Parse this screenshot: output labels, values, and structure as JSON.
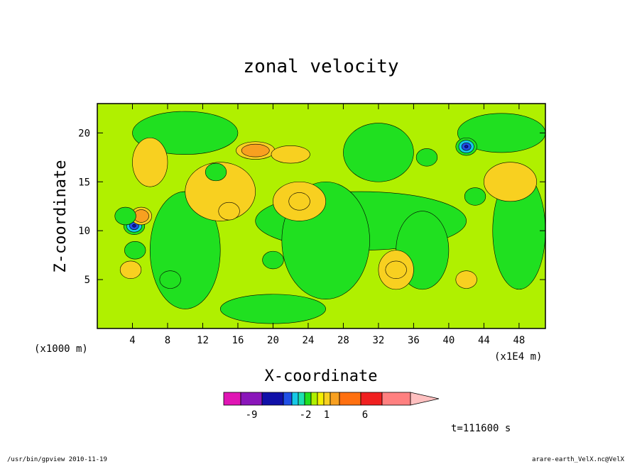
{
  "chart_data": {
    "type": "heatmap",
    "title": "zonal velocity",
    "xlabel": "X-coordinate",
    "ylabel": "Z-coordinate",
    "x_units": "(x1E4 m)",
    "y_units": "(x1000 m)",
    "xlim": [
      0,
      51
    ],
    "ylim": [
      0,
      23
    ],
    "x_ticks": [
      4,
      8,
      12,
      16,
      20,
      24,
      28,
      32,
      36,
      40,
      44,
      48
    ],
    "y_ticks": [
      5,
      10,
      15,
      20
    ],
    "grid": false,
    "colorbar": {
      "colors": [
        "#e015b4",
        "#8a16ba",
        "#1010a8",
        "#2050e6",
        "#17c9e6",
        "#1de0b0",
        "#20e020",
        "#b0f000",
        "#f5f000",
        "#f8d020",
        "#f8a020",
        "#ff7010",
        "#f02020",
        "#ff8080",
        "#ffc0c0"
      ],
      "tick_labels": [
        "-9",
        "-2",
        "1",
        "6"
      ],
      "extend": "max"
    },
    "features": [
      {
        "x": 4.2,
        "z": 10.5,
        "sign": "neg",
        "level": -9
      },
      {
        "x": 5.0,
        "z": 11.5,
        "sign": "pos",
        "level": 6
      },
      {
        "x": 3.2,
        "z": 11.5,
        "sign": "neg",
        "level": -2
      },
      {
        "x": 4.3,
        "z": 8.0,
        "sign": "neg",
        "level": -2
      },
      {
        "x": 3.8,
        "z": 6.0,
        "sign": "pos",
        "level": 3
      },
      {
        "x": 18.0,
        "z": 18.2,
        "sign": "pos",
        "level": 6
      },
      {
        "x": 22.0,
        "z": 17.8,
        "sign": "pos",
        "level": 3
      },
      {
        "x": 13.5,
        "z": 16.0,
        "sign": "neg",
        "level": -2
      },
      {
        "x": 8.3,
        "z": 5.0,
        "sign": "neg",
        "level": -2
      },
      {
        "x": 42.0,
        "z": 18.6,
        "sign": "neg",
        "level": -9
      },
      {
        "x": 37.5,
        "z": 17.5,
        "sign": "neg",
        "level": -2
      },
      {
        "x": 43.0,
        "z": 13.5,
        "sign": "neg",
        "level": -1
      },
      {
        "x": 42.0,
        "z": 5.0,
        "sign": "pos",
        "level": 3
      },
      {
        "x": 15.0,
        "z": 12.0,
        "sign": "pos",
        "level": 3
      },
      {
        "x": 23.0,
        "z": 13.0,
        "sign": "pos",
        "level": 3
      },
      {
        "x": 20.0,
        "z": 7.0,
        "sign": "neg",
        "level": -1
      },
      {
        "x": 34.0,
        "z": 6.0,
        "sign": "pos",
        "level": 3
      }
    ]
  },
  "annotations": {
    "time": "t=111600 s",
    "footer_left": "/usr/bin/gpview  2010-11-19",
    "footer_right": "arare-earth_VelX.nc@VelX"
  }
}
